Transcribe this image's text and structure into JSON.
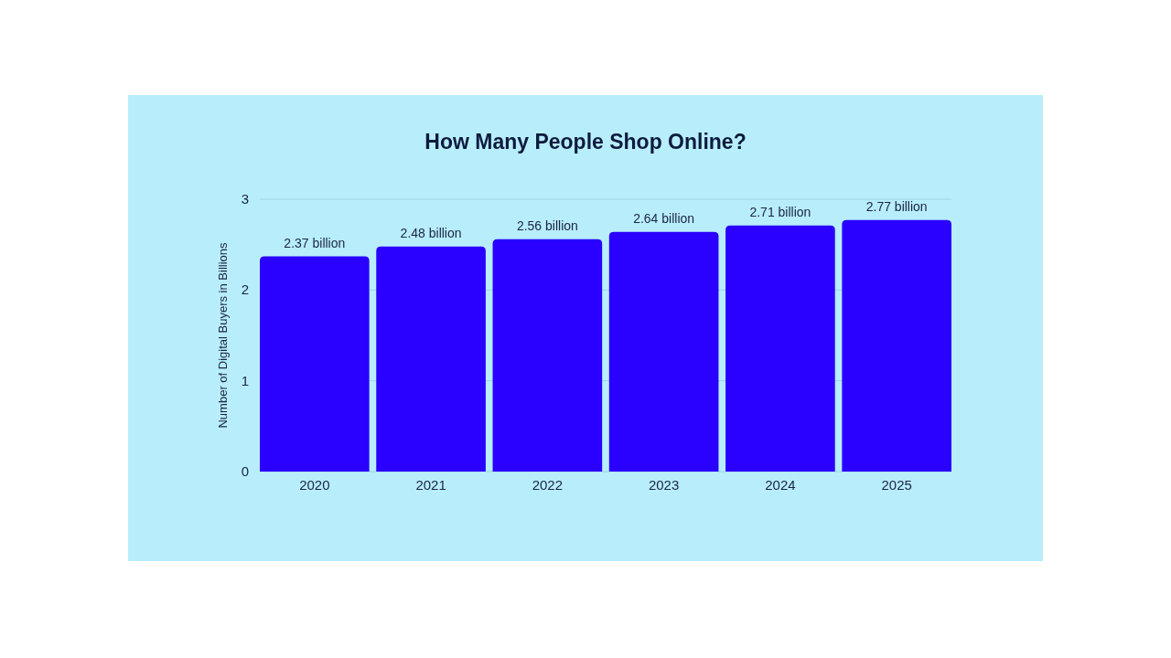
{
  "chart_data": {
    "type": "bar",
    "title": "How Many People Shop Online?",
    "ylabel": "Number of Digital Buyers in Billions",
    "categories": [
      "2020",
      "2021",
      "2022",
      "2023",
      "2024",
      "2025"
    ],
    "values": [
      2.37,
      2.48,
      2.56,
      2.64,
      2.71,
      2.77
    ],
    "value_labels": [
      "2.37 billion",
      "2.48 billion",
      "2.56 billion",
      "2.64 billion",
      "2.71 billion",
      "2.77 billion"
    ],
    "color": "#2a00ff",
    "ylim": [
      0,
      3
    ],
    "yticks": [
      0,
      1,
      2,
      3
    ],
    "grid": "y"
  }
}
